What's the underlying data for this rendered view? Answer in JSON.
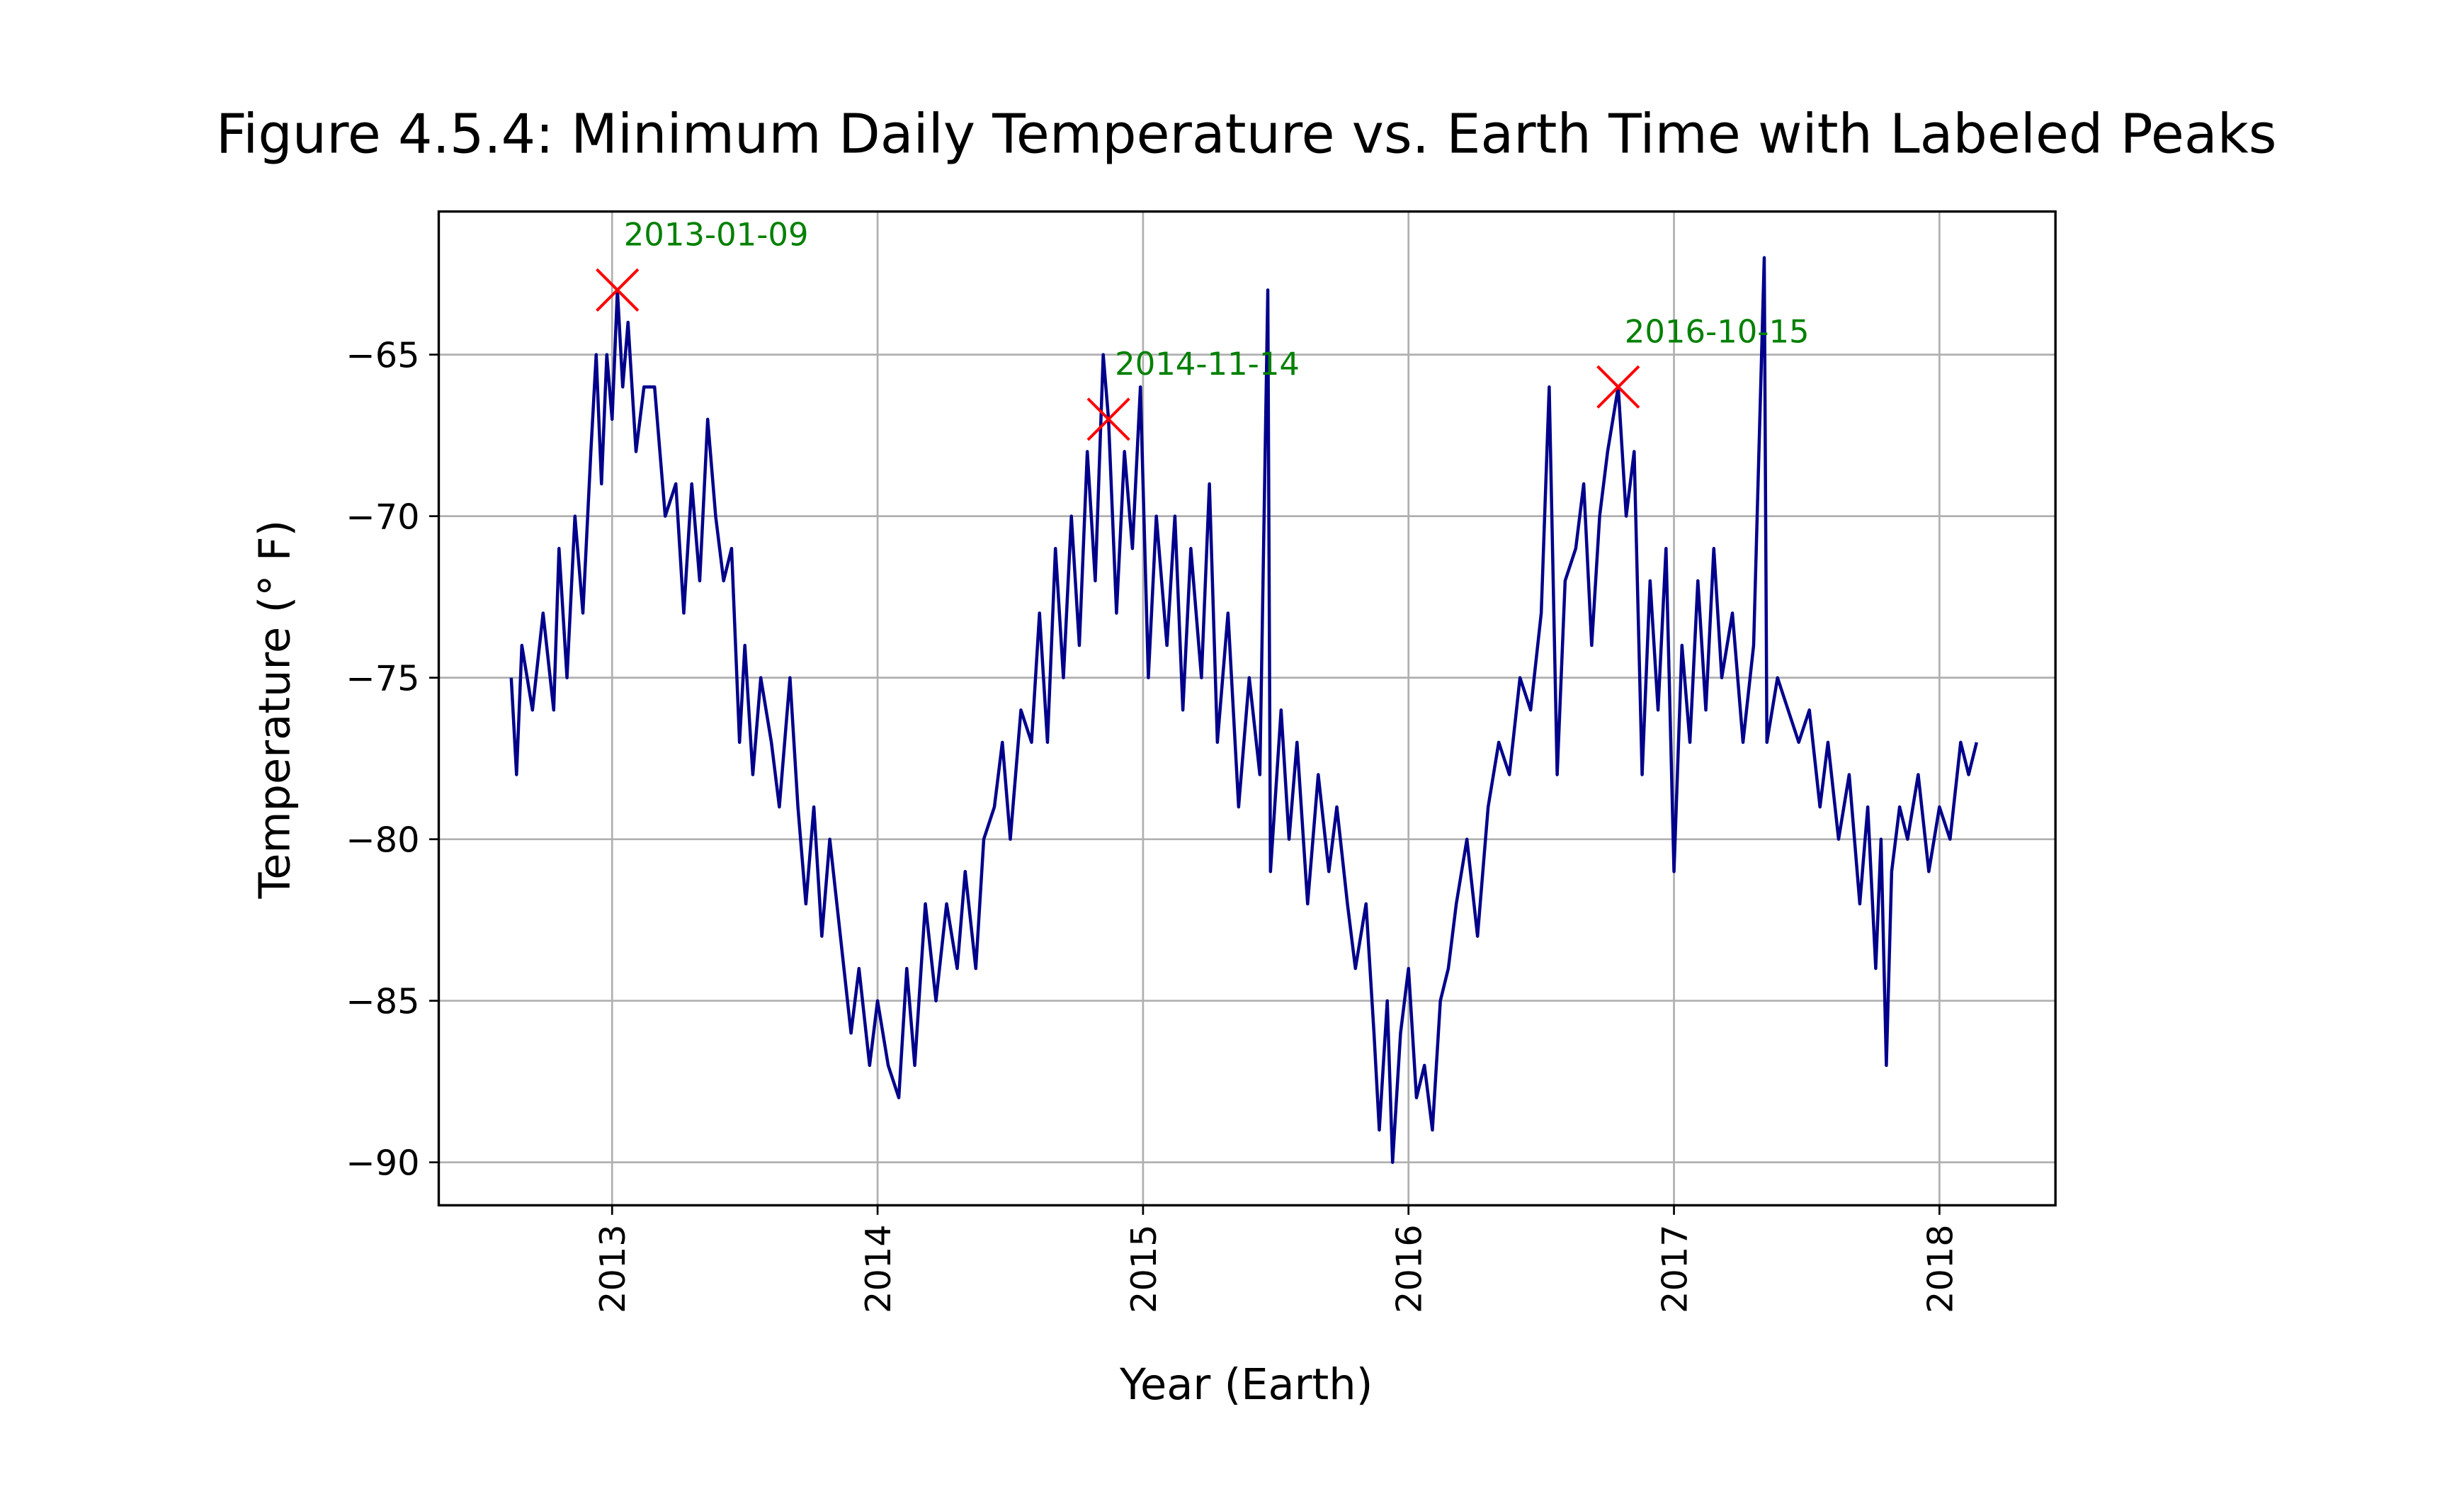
{
  "chart_data": {
    "type": "line",
    "title": "Figure 4.5.4: Minimum Daily Temperature vs. Earth Time with Labeled Peaks",
    "xlabel": "Year (Earth)",
    "ylabel": "Temperature (° F)",
    "color": "#00008b",
    "grid": true,
    "xlim": [
      2012.347,
      2018.437
    ],
    "ylim": [
      -91.33,
      -60.57
    ],
    "xticks": [
      2013,
      2014,
      2015,
      2016,
      2017,
      2018
    ],
    "yticks": [
      -65,
      -70,
      -75,
      -80,
      -85,
      -90
    ],
    "x": [
      2012.62,
      2012.64,
      2012.66,
      2012.7,
      2012.74,
      2012.78,
      2012.8,
      2012.83,
      2012.86,
      2012.89,
      2012.92,
      2012.94,
      2012.96,
      2012.98,
      2013.0,
      2013.02,
      2013.04,
      2013.06,
      2013.09,
      2013.12,
      2013.16,
      2013.2,
      2013.24,
      2013.27,
      2013.3,
      2013.33,
      2013.36,
      2013.39,
      2013.42,
      2013.45,
      2013.48,
      2013.5,
      2013.53,
      2013.56,
      2013.6,
      2013.63,
      2013.67,
      2013.7,
      2013.73,
      2013.76,
      2013.79,
      2013.82,
      2013.86,
      2013.9,
      2013.93,
      2013.97,
      2014.0,
      2014.04,
      2014.08,
      2014.11,
      2014.14,
      2014.18,
      2014.22,
      2014.26,
      2014.3,
      2014.33,
      2014.37,
      2014.4,
      2014.44,
      2014.47,
      2014.5,
      2014.54,
      2014.58,
      2014.61,
      2014.64,
      2014.67,
      2014.7,
      2014.73,
      2014.76,
      2014.79,
      2014.82,
      2014.85,
      2014.87,
      2014.9,
      2014.93,
      2014.96,
      2014.99,
      2015.02,
      2015.05,
      2015.09,
      2015.12,
      2015.15,
      2015.18,
      2015.22,
      2015.25,
      2015.28,
      2015.32,
      2015.36,
      2015.4,
      2015.44,
      2015.47,
      2015.48,
      2015.52,
      2015.55,
      2015.58,
      2015.62,
      2015.66,
      2015.7,
      2015.73,
      2015.77,
      2015.8,
      2015.84,
      2015.87,
      2015.89,
      2015.92,
      2015.94,
      2015.97,
      2016.0,
      2016.03,
      2016.06,
      2016.09,
      2016.12,
      2016.15,
      2016.18,
      2016.22,
      2016.26,
      2016.3,
      2016.34,
      2016.38,
      2016.42,
      2016.46,
      2016.5,
      2016.53,
      2016.56,
      2016.59,
      2016.63,
      2016.66,
      2016.69,
      2016.72,
      2016.75,
      2016.79,
      2016.82,
      2016.85,
      2016.88,
      2016.91,
      2016.94,
      2016.97,
      2017.0,
      2017.03,
      2017.06,
      2017.09,
      2017.12,
      2017.15,
      2017.18,
      2017.22,
      2017.26,
      2017.3,
      2017.34,
      2017.35,
      2017.39,
      2017.43,
      2017.47,
      2017.51,
      2017.55,
      2017.58,
      2017.62,
      2017.66,
      2017.7,
      2017.73,
      2017.76,
      2017.78,
      2017.8,
      2017.82,
      2017.85,
      2017.88,
      2017.92,
      2017.96,
      2018.0,
      2018.04,
      2018.08,
      2018.11,
      2018.14
    ],
    "values": [
      -75,
      -78,
      -74,
      -76,
      -73,
      -76,
      -71,
      -75,
      -70,
      -73,
      -68,
      -65,
      -69,
      -65,
      -67,
      -63,
      -66,
      -64,
      -68,
      -66,
      -66,
      -70,
      -69,
      -73,
      -69,
      -72,
      -67,
      -70,
      -72,
      -71,
      -77,
      -74,
      -78,
      -75,
      -77,
      -79,
      -75,
      -79,
      -82,
      -79,
      -83,
      -80,
      -83,
      -86,
      -84,
      -87,
      -85,
      -87,
      -88,
      -84,
      -87,
      -82,
      -85,
      -82,
      -84,
      -81,
      -84,
      -80,
      -79,
      -77,
      -80,
      -76,
      -77,
      -73,
      -77,
      -71,
      -75,
      -70,
      -74,
      -68,
      -72,
      -65,
      -67,
      -73,
      -68,
      -71,
      -66,
      -75,
      -70,
      -74,
      -70,
      -76,
      -71,
      -75,
      -69,
      -77,
      -73,
      -79,
      -75,
      -78,
      -63,
      -81,
      -76,
      -80,
      -77,
      -82,
      -78,
      -81,
      -79,
      -82,
      -84,
      -82,
      -86,
      -89,
      -85,
      -90,
      -86,
      -84,
      -88,
      -87,
      -89,
      -85,
      -84,
      -82,
      -80,
      -83,
      -79,
      -77,
      -78,
      -75,
      -76,
      -73,
      -66,
      -78,
      -72,
      -71,
      -69,
      -74,
      -70,
      -68,
      -66,
      -70,
      -68,
      -78,
      -72,
      -76,
      -71,
      -81,
      -74,
      -77,
      -72,
      -76,
      -71,
      -75,
      -73,
      -77,
      -74,
      -62,
      -77,
      -75,
      -76,
      -77,
      -76,
      -79,
      -77,
      -80,
      -78,
      -82,
      -79,
      -84,
      -80,
      -87,
      -81,
      -79,
      -80,
      -78,
      -81,
      -79,
      -80,
      -77,
      -78,
      -77
    ],
    "peaks": [
      {
        "x": 2013.02,
        "value": -63,
        "label": "2013-01-09"
      },
      {
        "x": 2014.87,
        "value": -67,
        "label": "2014-11-14"
      },
      {
        "x": 2016.79,
        "value": -66,
        "label": "2016-10-15"
      }
    ],
    "peak_marker_color": "#ff0000",
    "peak_label_color": "#008000"
  }
}
